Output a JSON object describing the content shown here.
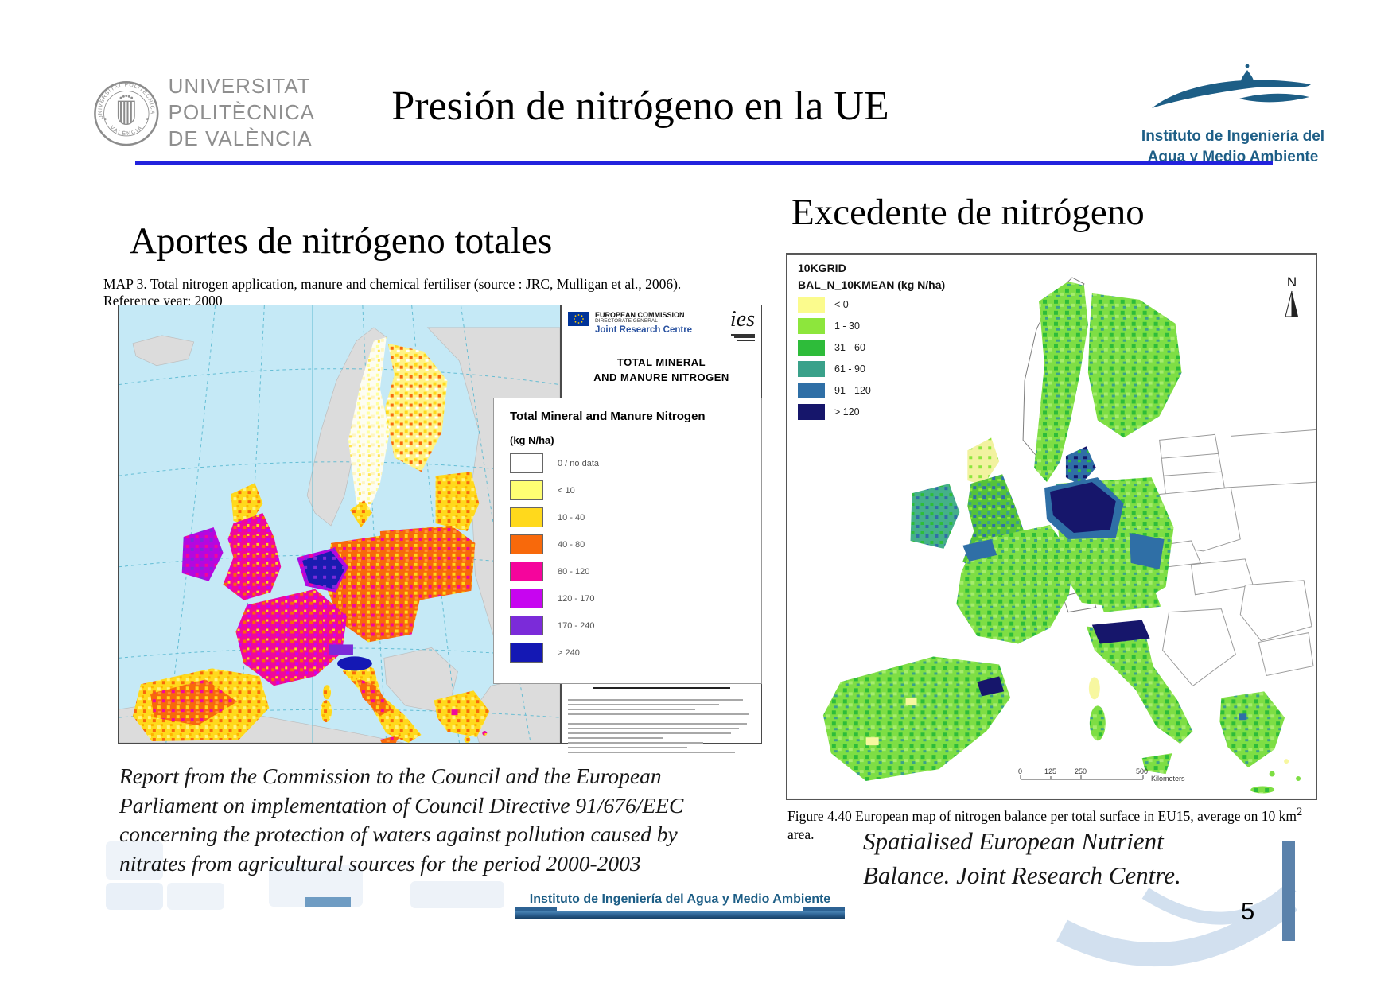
{
  "header": {
    "title": "Presión de nitrógeno en la UE",
    "upv": {
      "seal_top": "UNIVERSITAT POLITÈCNICA",
      "seal_bottom": "VALÈNCIA",
      "line1": "UNIVERSITAT",
      "line2": "POLITÈCNICA",
      "line3": "DE VALÈNCIA"
    },
    "iiama": {
      "line1": "Instituto de Ingeniería del",
      "line2": "Agua y Medio Ambiente"
    }
  },
  "left": {
    "heading": "Aportes de nitrógeno totales",
    "map_caption": "MAP 3. Total nitrogen application, manure and chemical fertiliser (source : JRC, Mulligan et al., 2006). Reference year: 2000",
    "panel": {
      "ec_line1": "EUROPEAN COMMISSION",
      "ec_line2": "DIRECTORATE GENERAL",
      "ec_line3": "Joint Research Centre",
      "ies_logo": "ies",
      "map_title_line1": "TOTAL MINERAL",
      "map_title_line2": "AND MANURE NITROGEN"
    },
    "legend": {
      "title": "Total Mineral and Manure Nitrogen",
      "units": "(kg N/ha)",
      "items": [
        {
          "label": "0 / no data",
          "color": "#ffffff"
        },
        {
          "label": "< 10",
          "color": "#ffff73"
        },
        {
          "label": "10 - 40",
          "color": "#ffd91c"
        },
        {
          "label": "40 - 80",
          "color": "#f8690b"
        },
        {
          "label": "80 - 120",
          "color": "#f5059c"
        },
        {
          "label": "120 - 170",
          "color": "#c705f0"
        },
        {
          "label": "170 - 240",
          "color": "#7b2bd9"
        },
        {
          "label": "> 240",
          "color": "#1418b4"
        }
      ]
    },
    "quote": "Report from the Commission to the Council and the European Parliament on implementation of Council Directive 91/676/EEC concerning the protection of waters against pollution caused by nitrates from agricultural sources for the period 2000-2003"
  },
  "right": {
    "heading": "Excedente de nitrógeno",
    "legend": {
      "title": "10KGRID",
      "subtitle": "BAL_N_10KMEAN (kg N/ha)",
      "items": [
        {
          "label": "< 0",
          "color": "#fbfb8d"
        },
        {
          "label": "1 - 30",
          "color": "#8de63c"
        },
        {
          "label": "31 - 60",
          "color": "#2ebc3a"
        },
        {
          "label": "61 - 90",
          "color": "#3aa18a"
        },
        {
          "label": "91 - 120",
          "color": "#2f6fa6"
        },
        {
          "label": "> 120",
          "color": "#16166b"
        }
      ]
    },
    "north_label": "N",
    "scale_bar": {
      "ticks": [
        "0",
        "125",
        "250",
        "500"
      ],
      "units": "Kilometers"
    },
    "caption_pre": "Figure 4.40 European map of nitrogen balance per total surface in EU15, average on 10 km",
    "caption_sup": "2",
    "caption_post": " area.",
    "quote_line1": "Spatialised European Nutrient",
    "quote_line2": "Balance. Joint Research Centre."
  },
  "footer": {
    "banner": "Instituto de Ingeniería del Agua y Medio Ambiente",
    "page_number": "5"
  }
}
